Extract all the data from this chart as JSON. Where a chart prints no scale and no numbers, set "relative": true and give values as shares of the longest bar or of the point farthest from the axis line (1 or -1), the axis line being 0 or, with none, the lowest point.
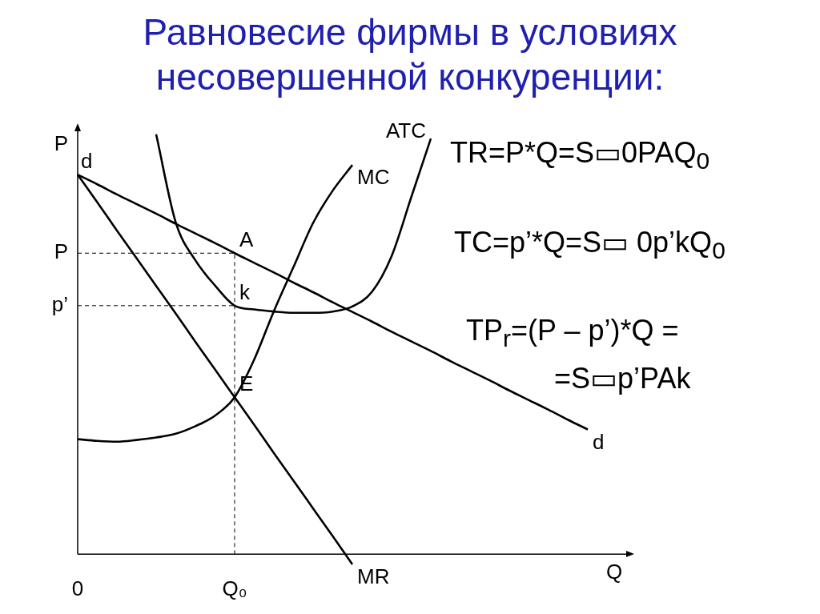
{
  "chart_data": {
    "type": "line",
    "title": "Равновесие фирмы в условиях несовершенной конкуренции:",
    "xlabel": "Q",
    "ylabel": "P",
    "relative": true,
    "legend": false,
    "marker": "none",
    "line_style": "solid",
    "categories": [
      "0",
      null,
      null,
      null,
      null,
      null,
      null,
      null,
      "Q₀",
      null,
      null,
      null,
      null,
      null,
      null,
      null,
      null,
      null,
      null,
      null,
      null,
      null,
      null,
      null,
      null,
      null,
      null,
      null,
      null
    ],
    "series": [
      {
        "name": "d",
        "color": "#000000",
        "values": [
          0.904,
          0.881,
          0.857,
          0.834,
          0.811,
          0.787,
          0.764,
          0.741,
          0.717,
          0.694,
          0.671,
          0.647,
          0.624,
          0.6,
          0.577,
          0.554,
          0.53,
          0.507,
          0.484,
          0.46,
          0.437,
          0.414,
          0.39,
          0.367,
          0.344,
          0.32,
          0.297,
          null,
          null
        ]
      },
      {
        "name": "MR",
        "color": "#000000",
        "values": [
          0.904,
          0.838,
          0.771,
          0.705,
          0.639,
          0.573,
          0.506,
          0.44,
          0.374,
          0.308,
          0.241,
          0.175,
          0.109,
          0.043,
          -0.024,
          null,
          null,
          null,
          null,
          null,
          null,
          null,
          null,
          null,
          null,
          null,
          null,
          null,
          null
        ]
      },
      {
        "name": "MC",
        "color": "#000000",
        "values": [
          0.274,
          0.27,
          0.268,
          0.272,
          0.278,
          0.287,
          0.305,
          0.33,
          0.374,
          0.464,
          0.579,
          0.684,
          0.789,
          0.866,
          0.927,
          null,
          null,
          null,
          null,
          null,
          null,
          null,
          null,
          null,
          null,
          null,
          null,
          null,
          null
        ]
      },
      {
        "name": "ATC",
        "color": "#000000",
        "values": [
          null,
          null,
          null,
          null,
          1.0,
          0.79,
          0.7,
          0.64,
          0.592,
          0.583,
          0.578,
          0.575,
          0.575,
          0.578,
          0.59,
          0.625,
          0.71,
          0.85,
          0.99,
          null,
          null,
          null,
          null,
          null,
          null,
          null,
          null,
          null,
          null
        ]
      }
    ],
    "ref_lines": [
      {
        "axis": "y",
        "value": 0.717,
        "label": "P",
        "line_style": "dashed"
      },
      {
        "axis": "y",
        "value": 0.592,
        "label": "p’",
        "line_style": "dashed"
      },
      {
        "axis": "x",
        "value": "Q₀",
        "line_style": "dashed"
      }
    ],
    "annotations": [
      {
        "text": "A",
        "x": "Q₀",
        "y": 0.717
      },
      {
        "text": "k",
        "x": "Q₀",
        "y": 0.592
      },
      {
        "text": "E",
        "x": "Q₀",
        "y": 0.374
      },
      {
        "text": "d",
        "y": 0.904
      },
      "TR=P*Q=S▭0PAQ$_{0}$",
      "TC=p’*Q=S▭ 0p’kQ$_{0}$",
      "TP$_{r}$=(P – p’)*Q =",
      "=S▭p’PAk"
    ]
  }
}
